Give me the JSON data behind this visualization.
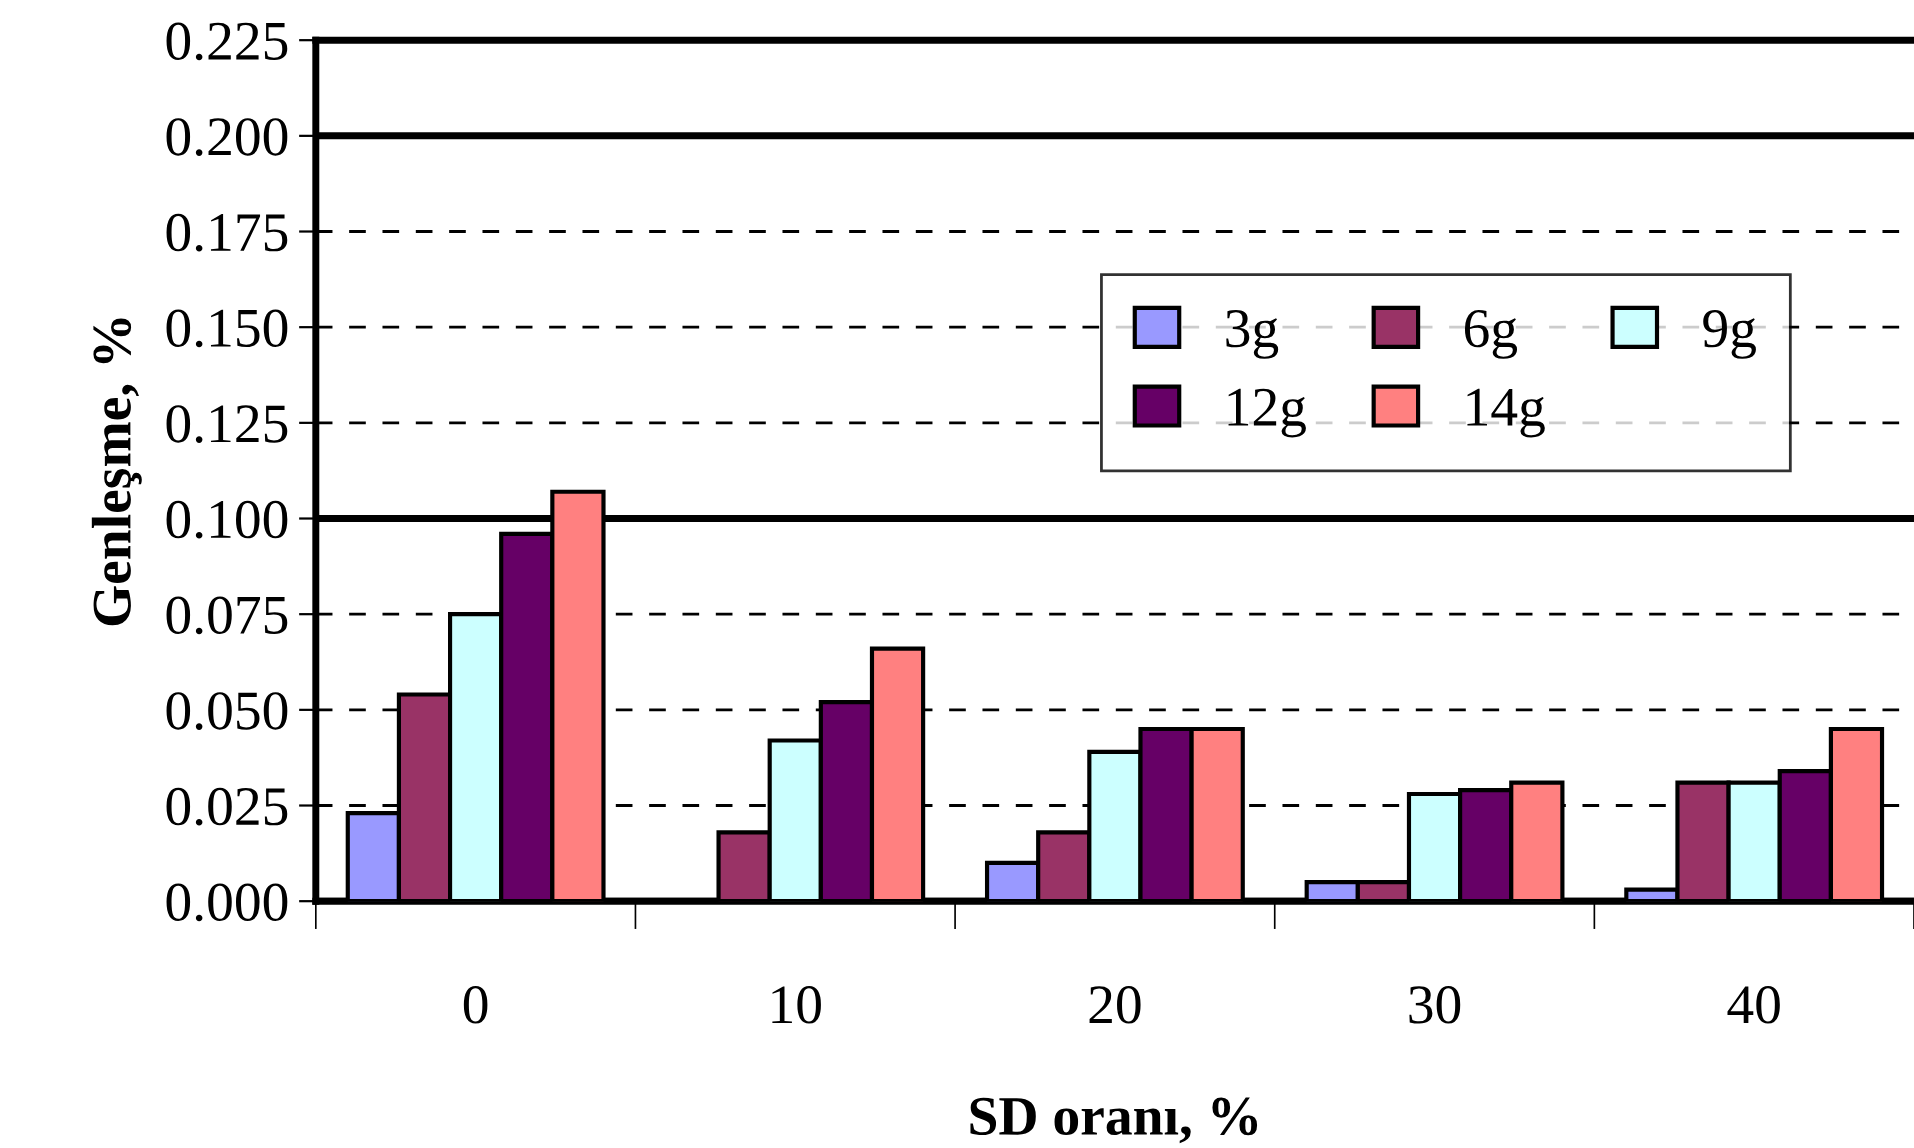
{
  "chart_data": {
    "type": "bar",
    "xlabel": "SD oranı, %",
    "ylabel": "Genleşme, %",
    "categories": [
      "0",
      "10",
      "20",
      "30",
      "40"
    ],
    "series": [
      {
        "name": "3g",
        "color": "#9999ff",
        "values": [
          0.023,
          null,
          0.01,
          0.005,
          0.003
        ]
      },
      {
        "name": "6g",
        "color": "#993366",
        "values": [
          0.054,
          0.018,
          0.018,
          0.005,
          0.031
        ]
      },
      {
        "name": "9g",
        "color": "#ccffff",
        "values": [
          0.075,
          0.042,
          0.039,
          0.028,
          0.031
        ]
      },
      {
        "name": "12g",
        "color": "#660066",
        "values": [
          0.096,
          0.052,
          0.045,
          0.029,
          0.034
        ]
      },
      {
        "name": "14g",
        "color": "#ff8080",
        "values": [
          0.107,
          0.066,
          0.045,
          0.031,
          0.045
        ]
      }
    ],
    "ylim": [
      0,
      0.225
    ],
    "yticks": [
      {
        "value": 0,
        "label": "0.000"
      },
      {
        "value": 0.025,
        "label": "0.025"
      },
      {
        "value": 0.05,
        "label": "0.050"
      },
      {
        "value": 0.075,
        "label": "0.075"
      },
      {
        "value": 0.1,
        "label": "0.100"
      },
      {
        "value": 0.125,
        "label": "0.125"
      },
      {
        "value": 0.15,
        "label": "0.150"
      },
      {
        "value": 0.175,
        "label": "0.175"
      },
      {
        "value": 0.2,
        "label": "0.200"
      },
      {
        "value": 0.225,
        "label": "0.225"
      }
    ],
    "grid": "y",
    "legend": "top right"
  }
}
